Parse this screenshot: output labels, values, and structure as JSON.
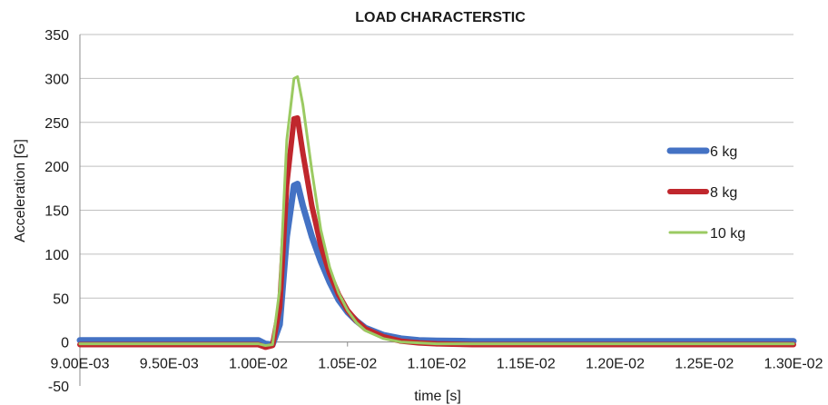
{
  "chart_data": {
    "type": "line",
    "title": "LOAD CHARACTERSTIC",
    "xlabel": "time [s]",
    "ylabel": "Acceleration  [G]",
    "xlim": [
      0.009,
      0.013
    ],
    "ylim": [
      -50,
      350
    ],
    "x_ticks": [
      0.009,
      0.0095,
      0.01,
      0.0105,
      0.011,
      0.0115,
      0.012,
      0.0125,
      0.013
    ],
    "x_tick_labels": [
      "9.00E-03",
      "9.50E-03",
      "1.00E-02",
      "1.05E-02",
      "1.10E-02",
      "1.15E-02",
      "1.20E-02",
      "1.25E-02",
      "1.30E-02"
    ],
    "y_ticks": [
      -50,
      0,
      50,
      100,
      150,
      200,
      250,
      300,
      350
    ],
    "y_tick_labels": [
      "-50",
      "0",
      "50",
      "100",
      "150",
      "200",
      "250",
      "300",
      "350"
    ],
    "grid": true,
    "legend_position": "right",
    "series": [
      {
        "name": "6 kg",
        "color": "#4472c4",
        "width": 7,
        "x": [
          0.009,
          0.01,
          0.01004,
          0.01008,
          0.01012,
          0.01016,
          0.0102,
          0.01022,
          0.01025,
          0.0103,
          0.01035,
          0.0104,
          0.01045,
          0.0105,
          0.01055,
          0.0106,
          0.0107,
          0.0108,
          0.0109,
          0.011,
          0.0112,
          0.013
        ],
        "y": [
          2,
          2,
          -2,
          -3,
          20,
          120,
          178,
          180,
          155,
          120,
          92,
          68,
          48,
          34,
          24,
          16,
          8,
          4,
          2,
          1.5,
          1,
          1
        ]
      },
      {
        "name": "8 kg",
        "color": "#c0272d",
        "width": 6,
        "x": [
          0.009,
          0.01,
          0.01004,
          0.01008,
          0.01012,
          0.01016,
          0.0102,
          0.01022,
          0.01025,
          0.0103,
          0.01035,
          0.0104,
          0.01045,
          0.0105,
          0.01055,
          0.0106,
          0.0107,
          0.0108,
          0.0109,
          0.011,
          0.0112,
          0.013
        ],
        "y": [
          -3,
          -3,
          -6,
          -4,
          40,
          180,
          254,
          255,
          215,
          155,
          110,
          78,
          54,
          36,
          24,
          15,
          6,
          1,
          -1,
          -2,
          -3,
          -3
        ]
      },
      {
        "name": "10 kg",
        "color": "#9bca62",
        "width": 3,
        "x": [
          0.009,
          0.01,
          0.01004,
          0.01008,
          0.01012,
          0.01016,
          0.0102,
          0.01022,
          0.01025,
          0.0103,
          0.01035,
          0.0104,
          0.01045,
          0.0105,
          0.01055,
          0.0106,
          0.0107,
          0.0108,
          0.0109,
          0.011,
          0.0112,
          0.013
        ],
        "y": [
          -2,
          -2,
          -4,
          -3,
          60,
          230,
          300,
          302,
          270,
          195,
          128,
          85,
          56,
          36,
          22,
          13,
          4,
          0,
          -1,
          -2,
          -2,
          -2
        ]
      }
    ]
  }
}
